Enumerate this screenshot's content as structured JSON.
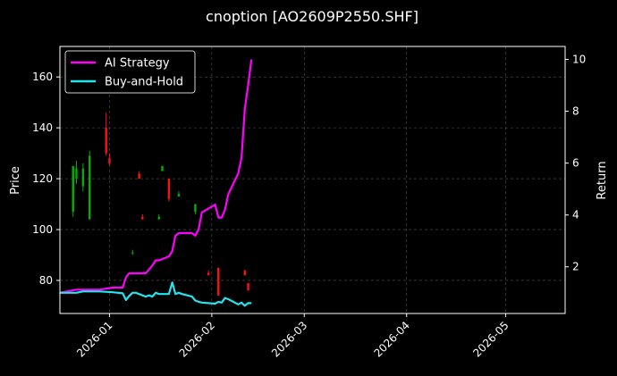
{
  "chart_data": {
    "type": "line",
    "title": "cnoption [AO2609P2550.SHF]",
    "xlabel": "",
    "ylabel": "Price",
    "y2label": "Return",
    "background": "#000000",
    "grid": true,
    "legend_position": "top-left",
    "x_ticks": [
      "2026-01",
      "2026-02",
      "2026-03",
      "2026-04",
      "2026-05"
    ],
    "x_range": [
      "2025-12-17",
      "2026-05-19"
    ],
    "ylim": [
      67,
      172
    ],
    "y_ticks": [
      80,
      100,
      120,
      140,
      160
    ],
    "y2lim": [
      0.2,
      10.5
    ],
    "y2_ticks": [
      2,
      4,
      6,
      8,
      10
    ],
    "series": [
      {
        "name": "AI Strategy",
        "color": "#ff00ff",
        "axis": "right",
        "x": [
          "2025-12-17",
          "2025-12-22",
          "2025-12-24",
          "2025-12-29",
          "2026-01-02",
          "2026-01-05",
          "2026-01-06",
          "2026-01-07",
          "2026-01-08",
          "2026-01-09",
          "2026-01-12",
          "2026-01-13",
          "2026-01-14",
          "2026-01-15",
          "2026-01-16",
          "2026-01-19",
          "2026-01-20",
          "2026-01-21",
          "2026-01-22",
          "2026-01-23",
          "2026-01-26",
          "2026-01-27",
          "2026-01-28",
          "2026-01-29",
          "2026-02-02",
          "2026-02-03",
          "2026-02-04",
          "2026-02-05",
          "2026-02-06",
          "2026-02-09",
          "2026-02-10",
          "2026-02-11",
          "2026-02-12",
          "2026-02-13"
        ],
        "values": [
          1.0,
          1.12,
          1.12,
          1.12,
          1.2,
          1.2,
          1.6,
          1.75,
          1.75,
          1.75,
          1.75,
          1.9,
          2.05,
          2.25,
          2.25,
          2.4,
          2.6,
          3.2,
          3.3,
          3.3,
          3.3,
          3.2,
          3.45,
          4.1,
          4.4,
          3.9,
          3.9,
          4.2,
          4.8,
          5.6,
          6.2,
          8.1,
          9.0,
          10.0
        ]
      },
      {
        "name": "Buy-and-Hold",
        "color": "#22e5f0",
        "axis": "right",
        "x": [
          "2025-12-17",
          "2025-12-22",
          "2025-12-24",
          "2025-12-29",
          "2026-01-02",
          "2026-01-05",
          "2026-01-06",
          "2026-01-07",
          "2026-01-08",
          "2026-01-09",
          "2026-01-12",
          "2026-01-13",
          "2026-01-14",
          "2026-01-15",
          "2026-01-16",
          "2026-01-19",
          "2026-01-20",
          "2026-01-21",
          "2026-01-22",
          "2026-01-23",
          "2026-01-26",
          "2026-01-27",
          "2026-01-28",
          "2026-01-29",
          "2026-02-02",
          "2026-02-03",
          "2026-02-04",
          "2026-02-05",
          "2026-02-06",
          "2026-02-09",
          "2026-02-10",
          "2026-02-11",
          "2026-02-12",
          "2026-02-13"
        ],
        "values": [
          1.0,
          1.0,
          1.05,
          1.05,
          1.02,
          0.98,
          0.72,
          0.88,
          1.0,
          1.0,
          0.85,
          0.9,
          0.85,
          1.0,
          0.95,
          0.95,
          1.4,
          0.95,
          1.0,
          0.95,
          0.85,
          0.7,
          0.65,
          0.62,
          0.58,
          0.65,
          0.62,
          0.8,
          0.75,
          0.55,
          0.62,
          0.5,
          0.6,
          0.6
        ]
      }
    ],
    "candles": {
      "up_color": "#00b000",
      "down_color": "#ff1010",
      "axis": "left",
      "items": [
        {
          "date": "2025-12-21",
          "open": 107,
          "close": 125,
          "high": 125,
          "low": 105
        },
        {
          "date": "2025-12-22",
          "open": 120,
          "close": 124,
          "high": 127,
          "low": 118
        },
        {
          "date": "2025-12-24",
          "open": 117,
          "close": 124,
          "high": 126,
          "low": 115
        },
        {
          "date": "2025-12-26",
          "open": 104,
          "close": 129,
          "high": 131,
          "low": 104
        },
        {
          "date": "2025-12-31",
          "open": 140,
          "close": 130,
          "high": 146,
          "low": 129
        },
        {
          "date": "2026-01-01",
          "open": 128,
          "close": 126,
          "high": 130,
          "low": 125
        },
        {
          "date": "2026-01-08",
          "open": 91,
          "close": 91,
          "high": 92,
          "low": 90
        },
        {
          "date": "2026-01-10",
          "open": 122,
          "close": 120,
          "high": 123,
          "low": 120
        },
        {
          "date": "2026-01-11",
          "open": 105,
          "close": 104,
          "high": 106,
          "low": 104
        },
        {
          "date": "2026-01-16",
          "open": 104,
          "close": 105,
          "high": 106,
          "low": 104
        },
        {
          "date": "2026-01-17",
          "open": 123,
          "close": 125,
          "high": 125,
          "low": 123
        },
        {
          "date": "2026-01-19",
          "open": 120,
          "close": 112,
          "high": 120,
          "low": 111
        },
        {
          "date": "2026-01-22",
          "open": 113,
          "close": 114,
          "high": 115,
          "low": 113
        },
        {
          "date": "2026-01-27",
          "open": 107,
          "close": 110,
          "high": 110,
          "low": 106
        },
        {
          "date": "2026-01-31",
          "open": 83,
          "close": 82,
          "high": 84,
          "low": 82
        },
        {
          "date": "2026-02-03",
          "open": 85,
          "close": 74,
          "high": 85,
          "low": 74
        },
        {
          "date": "2026-02-11",
          "open": 84,
          "close": 82,
          "high": 84,
          "low": 82
        },
        {
          "date": "2026-02-12",
          "open": 79,
          "close": 76,
          "high": 79,
          "low": 76
        }
      ]
    }
  }
}
